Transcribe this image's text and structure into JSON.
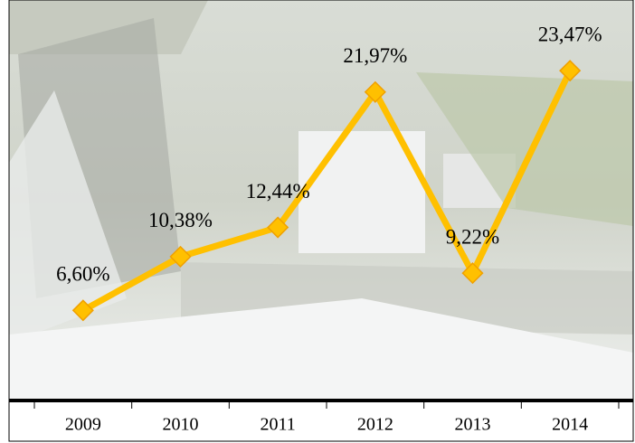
{
  "chart_data": {
    "type": "line",
    "categories": [
      "2009",
      "2010",
      "2011",
      "2012",
      "2013",
      "2014"
    ],
    "values": [
      6.6,
      10.38,
      12.44,
      21.97,
      9.22,
      23.47
    ],
    "value_labels": [
      "6,60%",
      "10,38%",
      "12,44%",
      "21,97%",
      "9,22%",
      "23,47%"
    ],
    "color": "#FFC000",
    "ylim": [
      0,
      28
    ]
  }
}
